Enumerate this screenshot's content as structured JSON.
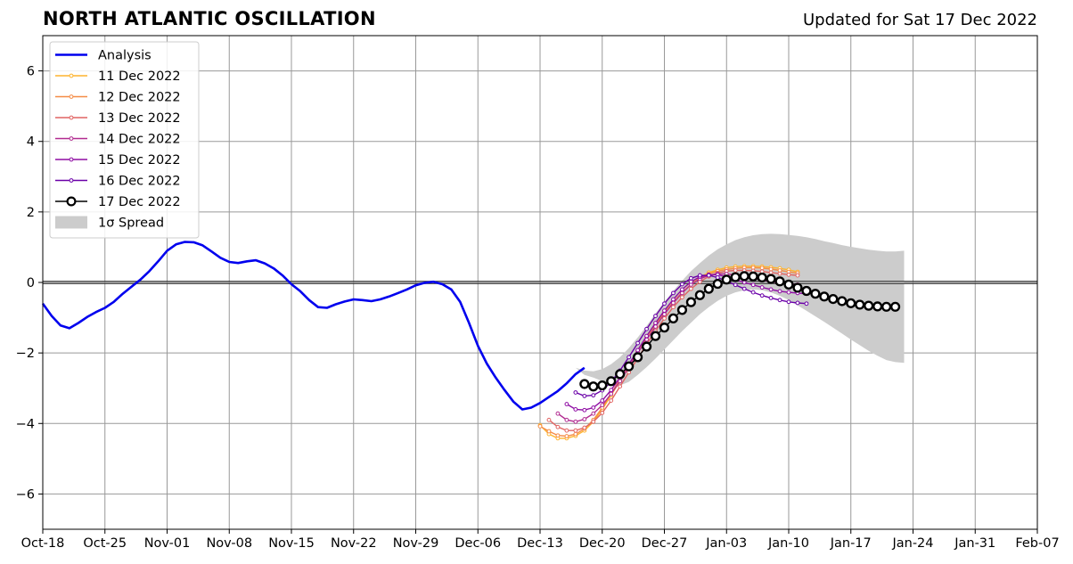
{
  "title": "NORTH ATLANTIC OSCILLATION",
  "subtitle": "Updated for Sat 17 Dec 2022",
  "chart_data": {
    "type": "line",
    "title": "NORTH ATLANTIC OSCILLATION",
    "subtitle": "Updated for Sat 17 Dec 2022",
    "xlabel": "",
    "ylabel": "",
    "x_tick_labels": [
      "Oct-18",
      "Oct-25",
      "Nov-01",
      "Nov-08",
      "Nov-15",
      "Nov-22",
      "Nov-29",
      "Dec-06",
      "Dec-13",
      "Dec-20",
      "Dec-27",
      "Jan-03",
      "Jan-10",
      "Jan-17",
      "Jan-24",
      "Jan-31",
      "Feb-07"
    ],
    "y_ticks": [
      6,
      4,
      2,
      0,
      -2,
      -4,
      -6
    ],
    "y_tick_labels": [
      "6",
      "4",
      "2",
      "0",
      "−2",
      "−4",
      "−6"
    ],
    "ylim": [
      -7,
      7
    ],
    "xlim": [
      "2022-10-18",
      "2023-02-07"
    ],
    "grid": true,
    "legend_position": "top-left",
    "zero_line": 0,
    "series": [
      {
        "name": "Analysis",
        "color": "#0000ee",
        "style": "analysis",
        "start": "2022-10-18",
        "step_days": 1,
        "values": [
          -0.6,
          -0.95,
          -1.22,
          -1.3,
          -1.15,
          -0.98,
          -0.84,
          -0.72,
          -0.55,
          -0.32,
          -0.12,
          0.08,
          0.32,
          0.6,
          0.9,
          1.08,
          1.15,
          1.14,
          1.05,
          0.88,
          0.7,
          0.58,
          0.55,
          0.6,
          0.63,
          0.54,
          0.4,
          0.2,
          -0.05,
          -0.25,
          -0.5,
          -0.7,
          -0.72,
          -0.62,
          -0.54,
          -0.48,
          -0.5,
          -0.53,
          -0.48,
          -0.4,
          -0.3,
          -0.2,
          -0.08,
          -0.01,
          0.02,
          -0.05,
          -0.2,
          -0.55,
          -1.15,
          -1.8,
          -2.3,
          -2.7,
          -3.05,
          -3.38,
          -3.6,
          -3.55,
          -3.42,
          -3.25,
          -3.08,
          -2.86,
          -2.6,
          -2.42
        ]
      },
      {
        "name": "11 Dec 2022",
        "color": "#fdb42f",
        "style": "forecast",
        "start": "2022-12-13",
        "step_days": 1,
        "values": [
          -4.05,
          -4.3,
          -4.42,
          -4.42,
          -4.35,
          -4.2,
          -3.95,
          -3.6,
          -3.2,
          -2.8,
          -2.4,
          -2.0,
          -1.6,
          -1.2,
          -0.88,
          -0.58,
          -0.3,
          -0.05,
          0.15,
          0.28,
          0.36,
          0.42,
          0.45,
          0.46,
          0.46,
          0.45,
          0.43,
          0.4,
          0.36,
          0.3
        ]
      },
      {
        "name": "12 Dec 2022",
        "color": "#f58c46",
        "style": "forecast",
        "start": "2022-12-13",
        "step_days": 1,
        "values": [
          -4.08,
          -4.22,
          -4.34,
          -4.36,
          -4.3,
          -4.15,
          -3.9,
          -3.55,
          -3.15,
          -2.75,
          -2.35,
          -1.95,
          -1.55,
          -1.18,
          -0.85,
          -0.55,
          -0.28,
          -0.05,
          0.12,
          0.24,
          0.32,
          0.37,
          0.4,
          0.42,
          0.42,
          0.41,
          0.38,
          0.34,
          0.3,
          0.26
        ]
      },
      {
        "name": "13 Dec 2022",
        "color": "#e16462",
        "style": "forecast",
        "start": "2022-12-14",
        "step_days": 1,
        "values": [
          -3.9,
          -4.1,
          -4.2,
          -4.2,
          -4.12,
          -3.95,
          -3.7,
          -3.35,
          -2.95,
          -2.55,
          -2.15,
          -1.75,
          -1.38,
          -1.02,
          -0.7,
          -0.42,
          -0.18,
          0.02,
          0.17,
          0.27,
          0.32,
          0.34,
          0.34,
          0.33,
          0.31,
          0.28,
          0.25,
          0.22,
          0.2
        ]
      },
      {
        "name": "14 Dec 2022",
        "color": "#b12a90",
        "style": "forecast",
        "start": "2022-12-15",
        "step_days": 1,
        "values": [
          -3.72,
          -3.9,
          -3.95,
          -3.88,
          -3.72,
          -3.48,
          -3.16,
          -2.8,
          -2.4,
          -2.0,
          -1.62,
          -1.25,
          -0.9,
          -0.58,
          -0.3,
          -0.06,
          0.1,
          0.2,
          0.24,
          0.24,
          0.21,
          0.17,
          0.12,
          0.07,
          0.02,
          -0.02,
          -0.05,
          -0.06
        ]
      },
      {
        "name": "15 Dec 2022",
        "color": "#8f0da4",
        "style": "forecast",
        "start": "2022-12-16",
        "step_days": 1,
        "values": [
          -3.45,
          -3.6,
          -3.62,
          -3.55,
          -3.35,
          -3.05,
          -2.7,
          -2.32,
          -1.92,
          -1.52,
          -1.15,
          -0.8,
          -0.48,
          -0.2,
          0.02,
          0.16,
          0.22,
          0.22,
          0.16,
          0.08,
          0.0,
          -0.07,
          -0.14,
          -0.2,
          -0.25,
          -0.28,
          -0.3,
          -0.32
        ]
      },
      {
        "name": "16 Dec 2022",
        "color": "#6a00a8",
        "style": "forecast",
        "start": "2022-12-17",
        "step_days": 1,
        "values": [
          -3.12,
          -3.22,
          -3.2,
          -3.06,
          -2.82,
          -2.5,
          -2.12,
          -1.72,
          -1.32,
          -0.95,
          -0.6,
          -0.3,
          -0.05,
          0.12,
          0.2,
          0.2,
          0.14,
          0.04,
          -0.07,
          -0.18,
          -0.28,
          -0.37,
          -0.44,
          -0.5,
          -0.55,
          -0.58,
          -0.6
        ]
      },
      {
        "name": "17 Dec 2022",
        "color": "#000000",
        "style": "current",
        "start": "2022-12-18",
        "step_days": 1,
        "values": [
          -2.88,
          -2.95,
          -2.92,
          -2.8,
          -2.6,
          -2.38,
          -2.12,
          -1.82,
          -1.52,
          -1.28,
          -1.02,
          -0.78,
          -0.56,
          -0.36,
          -0.18,
          -0.04,
          0.08,
          0.15,
          0.18,
          0.17,
          0.14,
          0.1,
          0.03,
          -0.06,
          -0.15,
          -0.24,
          -0.32,
          -0.4,
          -0.47,
          -0.53,
          -0.59,
          -0.63,
          -0.66,
          -0.68,
          -0.69,
          -0.69
        ]
      },
      {
        "name": "1σ Spread",
        "color": "#cccccc",
        "style": "band",
        "start": "2022-12-17",
        "step_days": 1,
        "upper": [
          -2.42,
          -2.5,
          -2.52,
          -2.46,
          -2.32,
          -2.12,
          -1.86,
          -1.56,
          -1.23,
          -0.88,
          -0.55,
          -0.24,
          0.05,
          0.32,
          0.55,
          0.76,
          0.94,
          1.08,
          1.2,
          1.28,
          1.34,
          1.37,
          1.38,
          1.37,
          1.35,
          1.32,
          1.28,
          1.23,
          1.17,
          1.12,
          1.06,
          1.01,
          0.97,
          0.93,
          0.9,
          0.88,
          0.88,
          0.9
        ],
        "lower": [
          -2.42,
          -2.62,
          -2.7,
          -2.8,
          -2.92,
          -2.92,
          -2.82,
          -2.62,
          -2.4,
          -2.16,
          -1.9,
          -1.64,
          -1.38,
          -1.14,
          -0.9,
          -0.7,
          -0.52,
          -0.38,
          -0.28,
          -0.22,
          -0.2,
          -0.22,
          -0.28,
          -0.38,
          -0.5,
          -0.65,
          -0.8,
          -0.96,
          -1.12,
          -1.28,
          -1.45,
          -1.62,
          -1.78,
          -1.94,
          -2.08,
          -2.2,
          -2.26,
          -2.28
        ]
      }
    ]
  }
}
